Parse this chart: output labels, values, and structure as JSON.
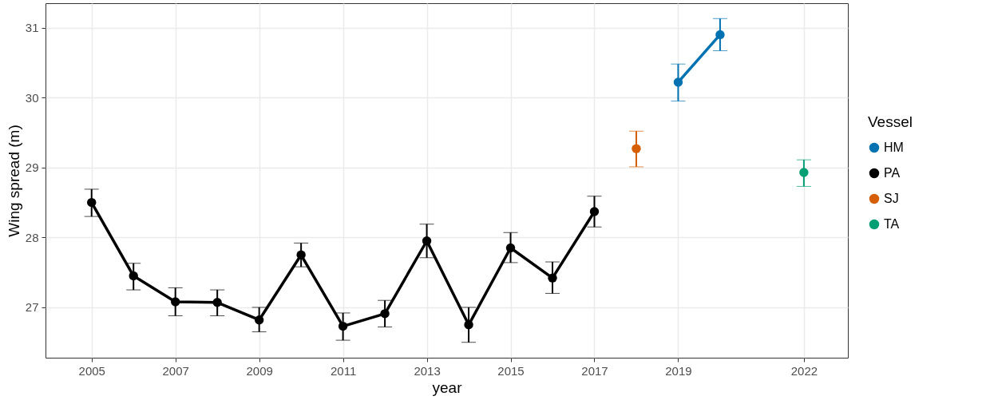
{
  "chart_data": {
    "type": "line",
    "xlabel": "year",
    "ylabel": "Wing spread (m)",
    "legend_title": "Vessel",
    "legend": "right",
    "grid": true,
    "marker": "circle",
    "line_style": "solid",
    "xlim": [
      2003.9,
      2023.05
    ],
    "xticks": [
      2005,
      2007,
      2009,
      2011,
      2013,
      2015,
      2017,
      2019,
      2022
    ],
    "ylim": [
      26.28,
      31.35
    ],
    "yticks": [
      27,
      28,
      29,
      30,
      31
    ],
    "series": [
      {
        "name": "HM",
        "color": "#0072b2",
        "x": [
          2019,
          2020
        ],
        "values": [
          30.22,
          30.9
        ],
        "errors": [
          [
            29.95,
            30.48
          ],
          [
            30.67,
            31.13
          ]
        ]
      },
      {
        "name": "PA",
        "color": "#000000",
        "x": [
          2005,
          2006,
          2007,
          2008,
          2009,
          2010,
          2011,
          2012,
          2013,
          2014,
          2015,
          2016,
          2017
        ],
        "values": [
          28.5,
          27.45,
          27.08,
          27.07,
          26.82,
          27.75,
          26.73,
          26.91,
          27.95,
          26.75,
          27.85,
          27.42,
          28.37
        ],
        "errors": [
          [
            28.3,
            28.69
          ],
          [
            27.25,
            27.63
          ],
          [
            26.88,
            27.28
          ],
          [
            26.88,
            27.25
          ],
          [
            26.65,
            27.0
          ],
          [
            27.58,
            27.92
          ],
          [
            26.53,
            26.92
          ],
          [
            26.72,
            27.1
          ],
          [
            27.71,
            28.19
          ],
          [
            26.5,
            27.0
          ],
          [
            27.64,
            28.07
          ],
          [
            27.2,
            27.65
          ],
          [
            28.15,
            28.59
          ]
        ]
      },
      {
        "name": "SJ",
        "color": "#d55e00",
        "x": [
          2018
        ],
        "values": [
          29.27
        ],
        "errors": [
          [
            29.01,
            29.52
          ]
        ]
      },
      {
        "name": "TA",
        "color": "#009e73",
        "x": [
          2022
        ],
        "values": [
          28.93
        ],
        "errors": [
          [
            28.73,
            29.11
          ]
        ]
      }
    ]
  }
}
